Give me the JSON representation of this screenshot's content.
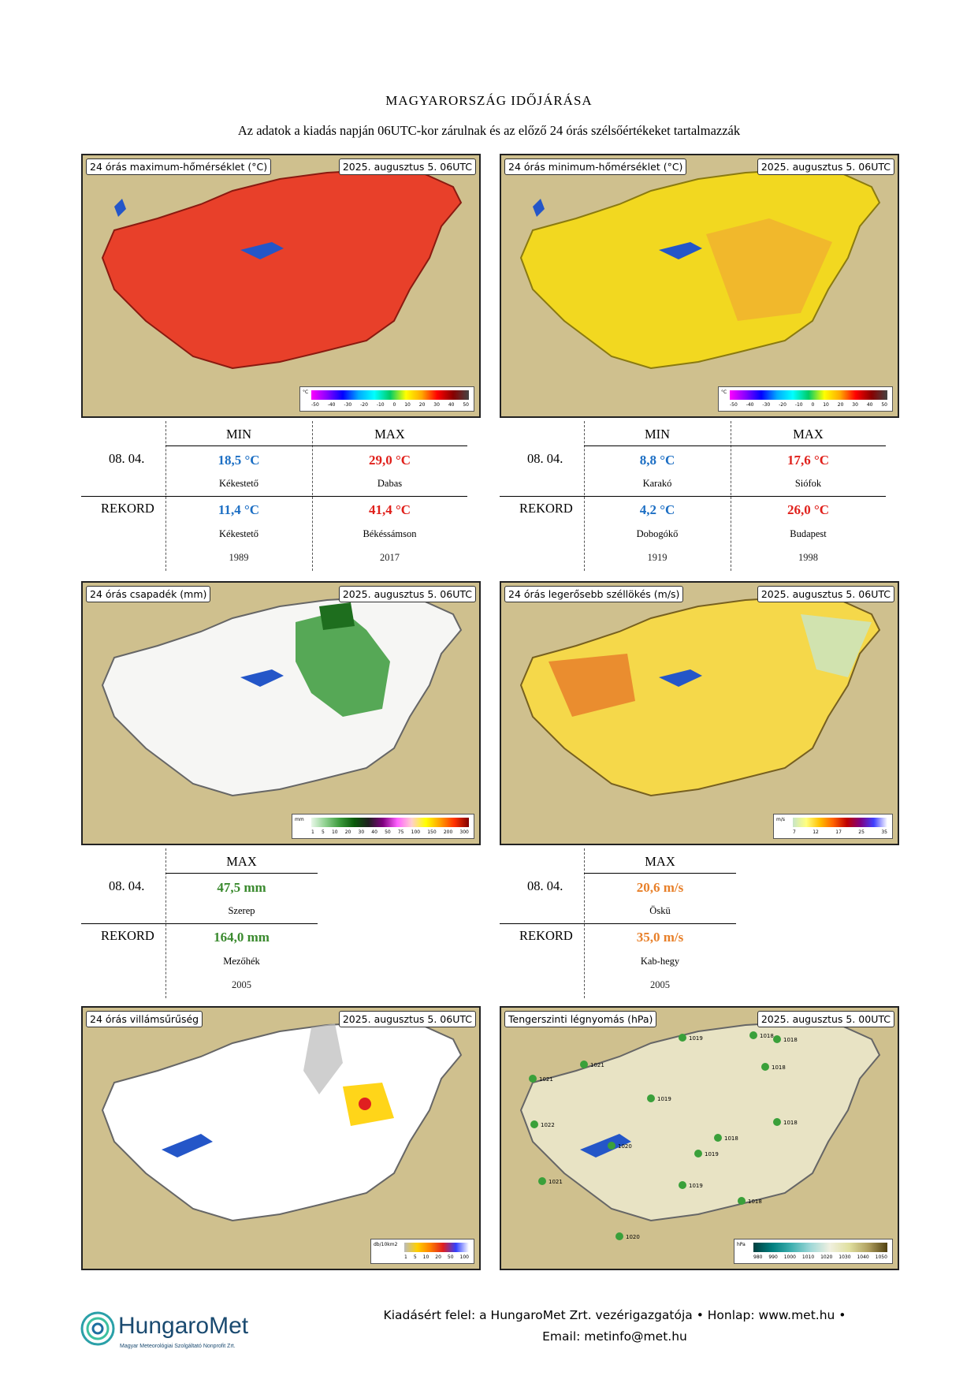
{
  "title": "MAGYARORSZÁG IDŐJÁRÁSA",
  "subtitle": "Az adatok a kiadás napján 06UTC-kor zárulnak és az előző 24 órás szélsőértékeket tartalmazzák",
  "maps": {
    "max_temp": {
      "heading": "24 órás maximum-hőmérséklet (°C)",
      "date": "2025. augusztus 5. 06UTC",
      "legend_unit": "°C",
      "legend_ticks": [
        "-50",
        "-40",
        "-30",
        "-20",
        "-10",
        "0",
        "10",
        "20",
        "30",
        "40",
        "50"
      ]
    },
    "min_temp": {
      "heading": "24 órás minimum-hőmérséklet (°C)",
      "date": "2025. augusztus 5. 06UTC",
      "legend_unit": "°C",
      "legend_ticks": [
        "-50",
        "-40",
        "-30",
        "-20",
        "-10",
        "0",
        "10",
        "20",
        "30",
        "40",
        "50"
      ]
    },
    "precip": {
      "heading": "24 órás csapadék (mm)",
      "date": "2025. augusztus 5. 06UTC",
      "legend_unit": "mm",
      "legend_ticks": [
        "1",
        "5",
        "10",
        "20",
        "30",
        "40",
        "50",
        "75",
        "100",
        "150",
        "200",
        "300"
      ]
    },
    "gust": {
      "heading": "24 órás legerősebb széllökés (m/s)",
      "date": "2025. augusztus 5. 06UTC",
      "legend_unit": "m/s",
      "legend_ticks": [
        "7",
        "12",
        "17",
        "25",
        "35"
      ]
    },
    "lightning": {
      "heading": "24 órás villámsűrűség",
      "date": "2025. augusztus 5. 06UTC",
      "legend_unit": "db/10km2",
      "legend_ticks": [
        "1",
        "5",
        "10",
        "20",
        "50",
        "100"
      ]
    },
    "pressure": {
      "heading": "Tengerszinti légnyomás (hPa)",
      "date": "2025. augusztus 5. 00UTC",
      "legend_unit": "hPa",
      "legend_ticks": [
        "980",
        "990",
        "1000",
        "1010",
        "1020",
        "1030",
        "1040",
        "1050"
      ],
      "stations": [
        "1021",
        "1021",
        "1022",
        "1020",
        "1021",
        "1019",
        "1018",
        "1019",
        "1018",
        "1019",
        "1019",
        "1018",
        "1018",
        "1018",
        "1018",
        "1020"
      ]
    }
  },
  "stats": {
    "temp_max": {
      "col_min": "MIN",
      "col_max": "MAX",
      "day_label": "08. 04.",
      "day_min": "18,5 °C",
      "day_min_loc": "Kékestető",
      "day_max": "29,0 °C",
      "day_max_loc": "Dabas",
      "rec_label": "REKORD",
      "rec_min": "11,4 °C",
      "rec_min_loc": "Kékestető",
      "rec_min_year": "1989",
      "rec_max": "41,4 °C",
      "rec_max_loc": "Békéssámson",
      "rec_max_year": "2017"
    },
    "temp_min": {
      "col_min": "MIN",
      "col_max": "MAX",
      "day_label": "08. 04.",
      "day_min": "8,8 °C",
      "day_min_loc": "Karakó",
      "day_max": "17,6 °C",
      "day_max_loc": "Siófok",
      "rec_label": "REKORD",
      "rec_min": "4,2 °C",
      "rec_min_loc": "Dobogókő",
      "rec_min_year": "1919",
      "rec_max": "26,0 °C",
      "rec_max_loc": "Budapest",
      "rec_max_year": "1998"
    },
    "precip": {
      "col_max": "MAX",
      "day_label": "08. 04.",
      "day_max": "47,5 mm",
      "day_max_loc": "Szerep",
      "rec_label": "REKORD",
      "rec_max": "164,0 mm",
      "rec_max_loc": "Mezőhék",
      "rec_max_year": "2005"
    },
    "gust": {
      "col_max": "MAX",
      "day_label": "08. 04.",
      "day_max": "20,6 m/s",
      "day_max_loc": "Öskü",
      "rec_label": "REKORD",
      "rec_max": "35,0 m/s",
      "rec_max_loc": "Kab-hegy",
      "rec_max_year": "2005"
    }
  },
  "footer": {
    "line1": "Kiadásért felel: a HungaroMet Zrt. vezérigazgatója • Honlap: www.met.hu •",
    "line2": "Email: metinfo@met.hu"
  },
  "logo": {
    "name": "HungaroMet",
    "tagline": "Magyar Meteorológiai Szolgáltató Nonprofit Zrt."
  },
  "colors": {
    "min_blue": "#1d6fc4",
    "max_red": "#e0201b",
    "precip_green": "#3a8a2e",
    "gust_orange": "#e8802a"
  }
}
